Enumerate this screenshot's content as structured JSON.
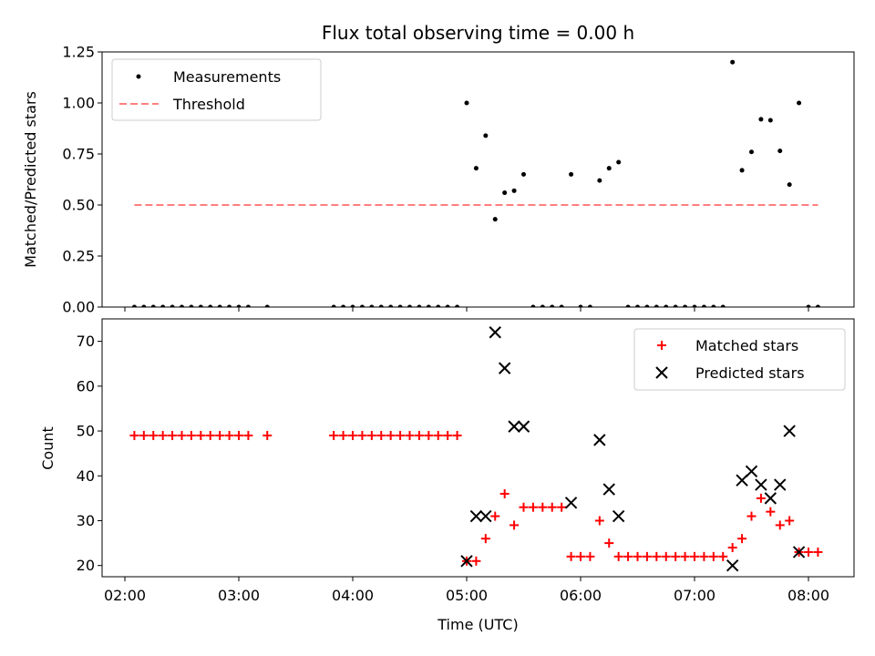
{
  "colors": {
    "measurement": "#000000",
    "threshold": "#ff7f7f",
    "matched": "#ff0000",
    "predicted": "#000000"
  },
  "chart_data": [
    {
      "type": "scatter",
      "title": "Flux total observing time = 0.00 h",
      "ylabel": "Matched/Predicted stars",
      "xlabel": "",
      "xlim": [
        "01:48",
        "08:24"
      ],
      "ylim": [
        0,
        1.25
      ],
      "x_ticks": [
        "02:00",
        "03:00",
        "04:00",
        "05:00",
        "06:00",
        "07:00",
        "08:00"
      ],
      "y_ticks": [
        "0.00",
        "0.25",
        "0.50",
        "0.75",
        "1.00",
        "1.25"
      ],
      "legend_position": "top-left",
      "grid": false,
      "legend": [
        "Measurements",
        "Threshold"
      ],
      "series": [
        {
          "name": "Measurements",
          "marker": "dot",
          "points": [
            [
              "02:05",
              0
            ],
            [
              "02:10",
              0
            ],
            [
              "02:15",
              0
            ],
            [
              "02:20",
              0
            ],
            [
              "02:25",
              0
            ],
            [
              "02:30",
              0
            ],
            [
              "02:35",
              0
            ],
            [
              "02:40",
              0
            ],
            [
              "02:45",
              0
            ],
            [
              "02:50",
              0
            ],
            [
              "02:55",
              0
            ],
            [
              "03:00",
              0
            ],
            [
              "03:05",
              0
            ],
            [
              "03:15",
              0
            ],
            [
              "03:50",
              0
            ],
            [
              "03:55",
              0
            ],
            [
              "04:00",
              0
            ],
            [
              "04:05",
              0
            ],
            [
              "04:10",
              0
            ],
            [
              "04:15",
              0
            ],
            [
              "04:20",
              0
            ],
            [
              "04:25",
              0
            ],
            [
              "04:30",
              0
            ],
            [
              "04:35",
              0
            ],
            [
              "04:40",
              0
            ],
            [
              "04:45",
              0
            ],
            [
              "04:50",
              0
            ],
            [
              "04:55",
              0
            ],
            [
              "05:00",
              1.0
            ],
            [
              "05:05",
              0.68
            ],
            [
              "05:10",
              0.84
            ],
            [
              "05:15",
              0.43
            ],
            [
              "05:20",
              0.56
            ],
            [
              "05:25",
              0.57
            ],
            [
              "05:30",
              0.65
            ],
            [
              "05:35",
              0
            ],
            [
              "05:40",
              0
            ],
            [
              "05:45",
              0
            ],
            [
              "05:50",
              0
            ],
            [
              "05:55",
              0.65
            ],
            [
              "06:00",
              0
            ],
            [
              "06:05",
              0
            ],
            [
              "06:10",
              0.62
            ],
            [
              "06:15",
              0.68
            ],
            [
              "06:20",
              0.71
            ],
            [
              "06:25",
              0
            ],
            [
              "06:30",
              0
            ],
            [
              "06:35",
              0
            ],
            [
              "06:40",
              0
            ],
            [
              "06:45",
              0
            ],
            [
              "06:50",
              0
            ],
            [
              "06:55",
              0
            ],
            [
              "07:00",
              0
            ],
            [
              "07:05",
              0
            ],
            [
              "07:10",
              0
            ],
            [
              "07:15",
              0
            ],
            [
              "07:20",
              1.2
            ],
            [
              "07:25",
              0.67
            ],
            [
              "07:30",
              0.76
            ],
            [
              "07:35",
              0.92
            ],
            [
              "07:40",
              0.915
            ],
            [
              "07:45",
              0.765
            ],
            [
              "07:50",
              0.6
            ],
            [
              "07:55",
              1.0
            ],
            [
              "08:00",
              0
            ],
            [
              "08:05",
              0
            ]
          ]
        },
        {
          "name": "Threshold",
          "line": "dashed",
          "points": [
            [
              "02:05",
              0.5
            ],
            [
              "08:05",
              0.5
            ]
          ]
        }
      ]
    },
    {
      "type": "scatter",
      "title": "",
      "ylabel": "Count",
      "xlabel": "Time (UTC)",
      "xlim": [
        "01:48",
        "08:24"
      ],
      "ylim": [
        17.5,
        75
      ],
      "x_ticks": [
        "02:00",
        "03:00",
        "04:00",
        "05:00",
        "06:00",
        "07:00",
        "08:00"
      ],
      "y_ticks": [
        "20",
        "30",
        "40",
        "50",
        "60",
        "70"
      ],
      "legend_position": "top-right",
      "grid": false,
      "legend": [
        "Matched stars",
        "Predicted stars"
      ],
      "series": [
        {
          "name": "Matched stars",
          "marker": "plus",
          "points": [
            [
              "02:05",
              49
            ],
            [
              "02:10",
              49
            ],
            [
              "02:15",
              49
            ],
            [
              "02:20",
              49
            ],
            [
              "02:25",
              49
            ],
            [
              "02:30",
              49
            ],
            [
              "02:35",
              49
            ],
            [
              "02:40",
              49
            ],
            [
              "02:45",
              49
            ],
            [
              "02:50",
              49
            ],
            [
              "02:55",
              49
            ],
            [
              "03:00",
              49
            ],
            [
              "03:05",
              49
            ],
            [
              "03:15",
              49
            ],
            [
              "03:50",
              49
            ],
            [
              "03:55",
              49
            ],
            [
              "04:00",
              49
            ],
            [
              "04:05",
              49
            ],
            [
              "04:10",
              49
            ],
            [
              "04:15",
              49
            ],
            [
              "04:20",
              49
            ],
            [
              "04:25",
              49
            ],
            [
              "04:30",
              49
            ],
            [
              "04:35",
              49
            ],
            [
              "04:40",
              49
            ],
            [
              "04:45",
              49
            ],
            [
              "04:50",
              49
            ],
            [
              "04:55",
              49
            ],
            [
              "05:00",
              21
            ],
            [
              "05:05",
              21
            ],
            [
              "05:10",
              26
            ],
            [
              "05:15",
              31
            ],
            [
              "05:20",
              36
            ],
            [
              "05:25",
              29
            ],
            [
              "05:30",
              33
            ],
            [
              "05:35",
              33
            ],
            [
              "05:40",
              33
            ],
            [
              "05:45",
              33
            ],
            [
              "05:50",
              33
            ],
            [
              "05:55",
              22
            ],
            [
              "06:00",
              22
            ],
            [
              "06:05",
              22
            ],
            [
              "06:10",
              30
            ],
            [
              "06:15",
              25
            ],
            [
              "06:20",
              22
            ],
            [
              "06:25",
              22
            ],
            [
              "06:30",
              22
            ],
            [
              "06:35",
              22
            ],
            [
              "06:40",
              22
            ],
            [
              "06:45",
              22
            ],
            [
              "06:50",
              22
            ],
            [
              "06:55",
              22
            ],
            [
              "07:00",
              22
            ],
            [
              "07:05",
              22
            ],
            [
              "07:10",
              22
            ],
            [
              "07:15",
              22
            ],
            [
              "07:20",
              24
            ],
            [
              "07:25",
              26
            ],
            [
              "07:30",
              31
            ],
            [
              "07:35",
              35
            ],
            [
              "07:40",
              32
            ],
            [
              "07:45",
              29
            ],
            [
              "07:50",
              30
            ],
            [
              "07:55",
              23
            ],
            [
              "08:00",
              23
            ],
            [
              "08:05",
              23
            ]
          ]
        },
        {
          "name": "Predicted stars",
          "marker": "x",
          "points": [
            [
              "05:00",
              21
            ],
            [
              "05:05",
              31
            ],
            [
              "05:10",
              31
            ],
            [
              "05:15",
              72
            ],
            [
              "05:20",
              64
            ],
            [
              "05:25",
              51
            ],
            [
              "05:30",
              51
            ],
            [
              "05:55",
              34
            ],
            [
              "06:10",
              48
            ],
            [
              "06:15",
              37
            ],
            [
              "06:20",
              31
            ],
            [
              "07:20",
              20
            ],
            [
              "07:25",
              39
            ],
            [
              "07:30",
              41
            ],
            [
              "07:35",
              38
            ],
            [
              "07:40",
              35
            ],
            [
              "07:45",
              38
            ],
            [
              "07:50",
              50
            ],
            [
              "07:55",
              23
            ]
          ]
        }
      ]
    }
  ]
}
